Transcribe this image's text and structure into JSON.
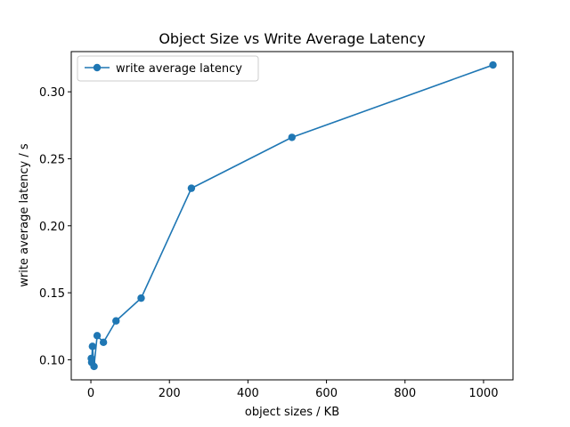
{
  "chart_data": {
    "type": "line",
    "title": "Object Size vs Write Average Latency",
    "xlabel": "object sizes / KB",
    "ylabel": "write average latency / s",
    "xlim": [
      -50,
      1075
    ],
    "ylim": [
      0.085,
      0.33
    ],
    "xticks": [
      0,
      200,
      400,
      600,
      800,
      1000
    ],
    "yticks": [
      0.1,
      0.15,
      0.2,
      0.25,
      0.3
    ],
    "xtick_labels": [
      "0",
      "200",
      "400",
      "600",
      "800",
      "1000"
    ],
    "ytick_labels": [
      "0.10",
      "0.15",
      "0.20",
      "0.25",
      "0.30"
    ],
    "grid": false,
    "legend_position": "top-left",
    "series": [
      {
        "name": "write average latency",
        "color": "#1f77b4",
        "marker": "circle",
        "x": [
          1,
          2,
          4,
          8,
          16,
          32,
          64,
          128,
          256,
          512,
          1024
        ],
        "y": [
          0.101,
          0.098,
          0.11,
          0.095,
          0.118,
          0.113,
          0.129,
          0.146,
          0.228,
          0.266,
          0.32
        ]
      }
    ]
  }
}
